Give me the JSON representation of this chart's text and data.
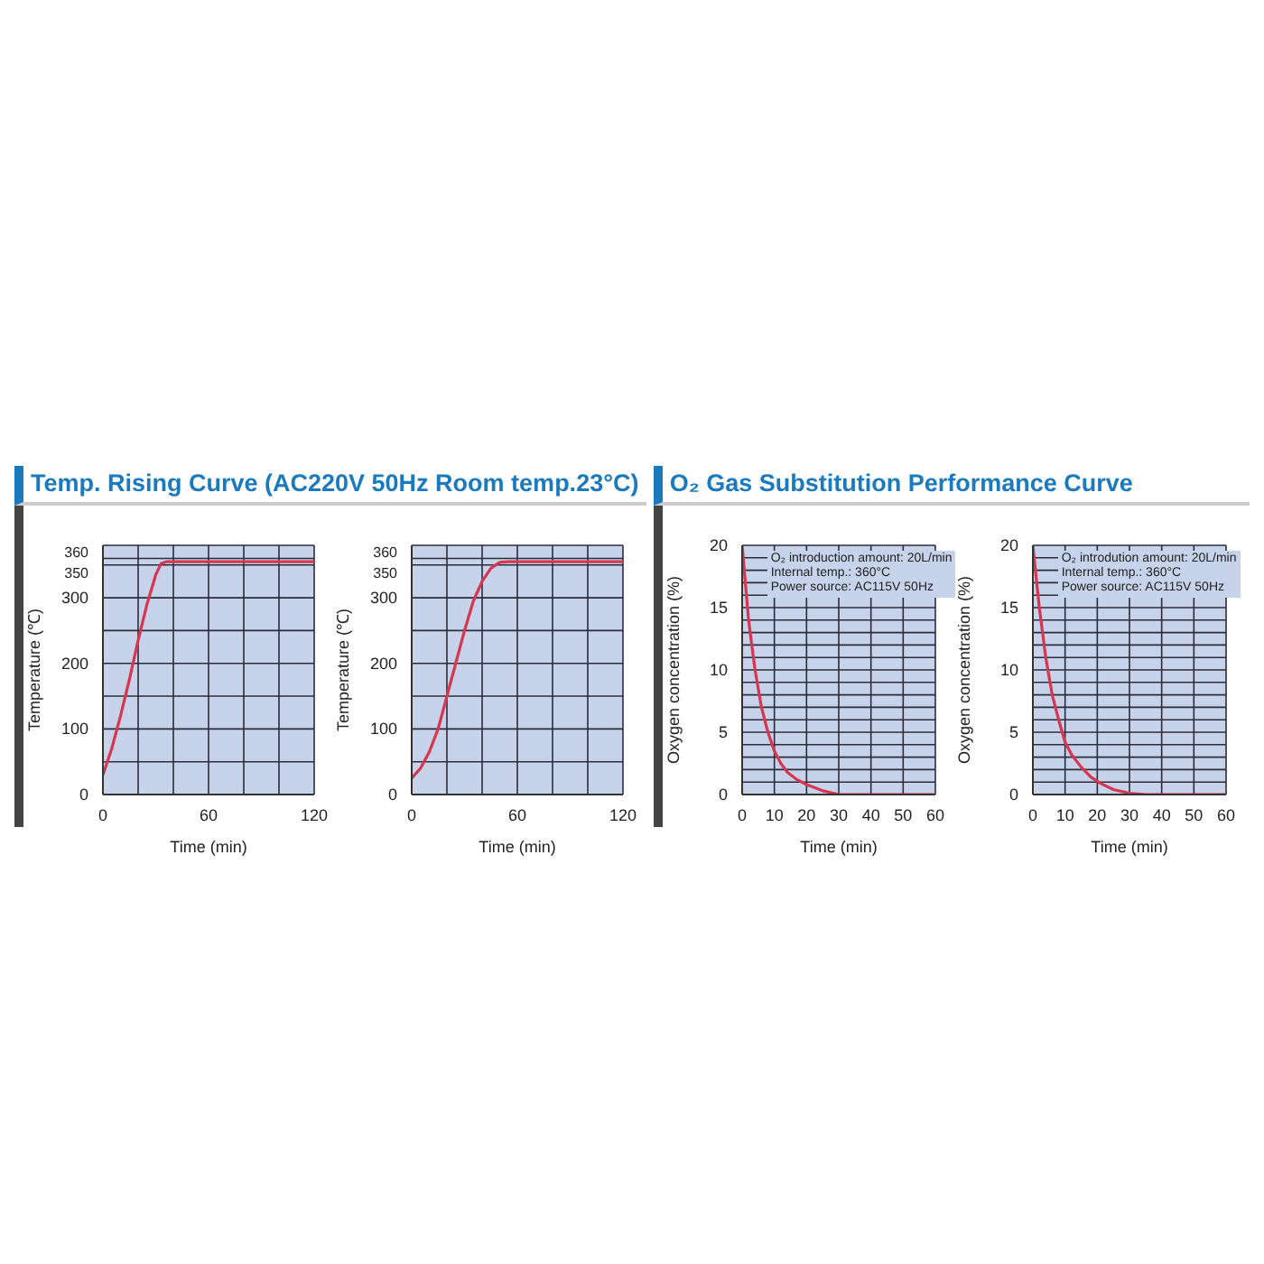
{
  "chart_data": [
    {
      "type": "line",
      "title": "Temp. Rising Curve (AC220V 50Hz Room temp.23°C)",
      "xlabel": "Time (min)",
      "ylabel": "Temperature (℃)",
      "xlim": [
        0,
        120
      ],
      "ylim": [
        0,
        380
      ],
      "xticks": [
        0,
        {
          "value": 20,
          "label": null
        },
        {
          "value": 40,
          "label": null
        },
        60,
        {
          "value": 80,
          "label": null
        },
        {
          "value": 100,
          "label": null
        },
        120
      ],
      "yticks": [
        0,
        {
          "value": 50,
          "label": null
        },
        100,
        {
          "value": 150,
          "label": null
        },
        200,
        {
          "value": 250,
          "label": null
        },
        300,
        350,
        360
      ],
      "series": [
        {
          "color": "#d6364f",
          "x": [
            0,
            5,
            10,
            15,
            20,
            25,
            30,
            33,
            36,
            120
          ],
          "values": [
            30,
            70,
            120,
            175,
            235,
            290,
            335,
            352,
            355,
            355
          ]
        }
      ],
      "grid": true,
      "marker": "none",
      "line_style": "solid"
    },
    {
      "type": "line",
      "xlabel": "Time (min)",
      "ylabel": "Temperature (℃)",
      "xlim": [
        0,
        120
      ],
      "ylim": [
        0,
        380
      ],
      "xticks": [
        0,
        {
          "value": 20,
          "label": null
        },
        {
          "value": 40,
          "label": null
        },
        60,
        {
          "value": 80,
          "label": null
        },
        {
          "value": 100,
          "label": null
        },
        120
      ],
      "yticks": [
        0,
        {
          "value": 50,
          "label": null
        },
        100,
        {
          "value": 150,
          "label": null
        },
        200,
        {
          "value": 250,
          "label": null
        },
        300,
        350,
        360
      ],
      "series": [
        {
          "color": "#d6364f",
          "x": [
            0,
            5,
            10,
            15,
            20,
            25,
            30,
            35,
            40,
            45,
            50,
            55,
            120
          ],
          "values": [
            25,
            40,
            65,
            100,
            150,
            200,
            250,
            295,
            325,
            345,
            354,
            355,
            355
          ]
        }
      ],
      "grid": true,
      "marker": "none",
      "line_style": "solid"
    },
    {
      "type": "line",
      "title": "O₂ Gas Substitution Performance Curve",
      "xlabel": "Time  (min)",
      "ylabel": "Oxygen concentration  (%)",
      "xlim": [
        0,
        60
      ],
      "ylim": [
        0,
        20
      ],
      "xticks": [
        0,
        10,
        20,
        30,
        40,
        50,
        60
      ],
      "yticks": [
        0,
        {
          "value": 1,
          "label": null
        },
        {
          "value": 2,
          "label": null
        },
        {
          "value": 3,
          "label": null
        },
        {
          "value": 4,
          "label": null
        },
        5,
        {
          "value": 6,
          "label": null
        },
        {
          "value": 7,
          "label": null
        },
        {
          "value": 8,
          "label": null
        },
        {
          "value": 9,
          "label": null
        },
        10,
        {
          "value": 11,
          "label": null
        },
        {
          "value": 12,
          "label": null
        },
        {
          "value": 13,
          "label": null
        },
        {
          "value": 14,
          "label": null
        },
        15,
        {
          "value": 16,
          "label": null
        },
        {
          "value": 17,
          "label": null
        },
        {
          "value": 18,
          "label": null
        },
        {
          "value": 19,
          "label": null
        },
        20
      ],
      "annotations": [
        "O₂ introduction amount: 20L/min",
        "Internal temp.: 360°C",
        "Power source: AC115V 50Hz"
      ],
      "series": [
        {
          "color": "#d6364f",
          "x": [
            0,
            2,
            4,
            6,
            8,
            10,
            12,
            14,
            17,
            20,
            25,
            30,
            60
          ],
          "values": [
            20,
            14,
            10,
            7,
            5,
            3.5,
            2.5,
            1.8,
            1.2,
            0.8,
            0.3,
            0,
            0
          ]
        }
      ],
      "grid": true,
      "marker": "none",
      "line_style": "solid"
    },
    {
      "type": "line",
      "xlabel": "Time  (min)",
      "ylabel": "Oxygen concentration  (%)",
      "xlim": [
        0,
        60
      ],
      "ylim": [
        0,
        20
      ],
      "xticks": [
        0,
        10,
        20,
        30,
        40,
        50,
        60
      ],
      "yticks": [
        0,
        {
          "value": 1,
          "label": null
        },
        {
          "value": 2,
          "label": null
        },
        {
          "value": 3,
          "label": null
        },
        {
          "value": 4,
          "label": null
        },
        5,
        {
          "value": 6,
          "label": null
        },
        {
          "value": 7,
          "label": null
        },
        {
          "value": 8,
          "label": null
        },
        {
          "value": 9,
          "label": null
        },
        10,
        {
          "value": 11,
          "label": null
        },
        {
          "value": 12,
          "label": null
        },
        {
          "value": 13,
          "label": null
        },
        {
          "value": 14,
          "label": null
        },
        15,
        {
          "value": 16,
          "label": null
        },
        {
          "value": 17,
          "label": null
        },
        {
          "value": 18,
          "label": null
        },
        {
          "value": 19,
          "label": null
        },
        20
      ],
      "annotations": [
        "O₂ introdution amount: 20L/min",
        "Internal temp.: 360°C",
        "Power source: AC115V 50Hz"
      ],
      "series": [
        {
          "color": "#d6364f",
          "x": [
            0,
            2,
            4,
            6,
            8,
            10,
            12,
            15,
            18,
            21,
            25,
            30,
            35,
            60
          ],
          "values": [
            20,
            15,
            11,
            8,
            6,
            4.2,
            3.2,
            2.2,
            1.4,
            0.9,
            0.4,
            0.1,
            0,
            0
          ]
        }
      ],
      "grid": true,
      "marker": "none",
      "line_style": "solid"
    }
  ]
}
